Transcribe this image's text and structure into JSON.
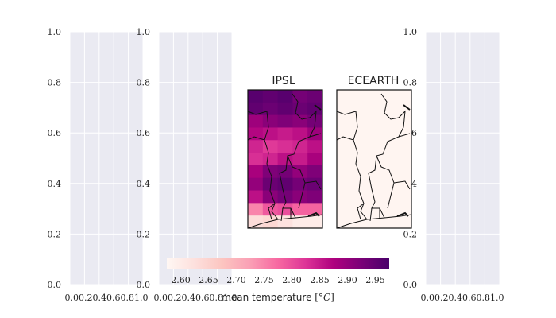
{
  "chart_data": {
    "type": "heatmap",
    "empty_axes": {
      "yticks": [
        "0.0",
        "0.2",
        "0.4",
        "0.6",
        "0.8",
        "1.0"
      ],
      "xticks": [
        "0.0",
        "0.2",
        "0.4",
        "0.6",
        "0.8",
        "1.0"
      ],
      "xtick_string": "0.00.20.40.60.81.0"
    },
    "maps": [
      {
        "title": "IPSL",
        "rows_north_to_south": [
          [
            2.96,
            2.95,
            2.96,
            2.93,
            2.94
          ],
          [
            2.95,
            2.94,
            2.95,
            2.94,
            2.95
          ],
          [
            2.89,
            2.91,
            2.92,
            2.91,
            2.93
          ],
          [
            2.87,
            2.86,
            2.85,
            2.86,
            2.89
          ],
          [
            2.84,
            2.82,
            2.83,
            2.84,
            2.86
          ],
          [
            2.83,
            2.84,
            2.86,
            2.85,
            2.88
          ],
          [
            2.88,
            2.92,
            2.93,
            2.9,
            2.92
          ],
          [
            2.9,
            2.94,
            2.95,
            2.93,
            2.94
          ],
          [
            2.86,
            2.91,
            2.93,
            2.91,
            2.92
          ],
          [
            2.75,
            2.79,
            2.8,
            2.78,
            2.78
          ],
          [
            2.63,
            2.64,
            2.62,
            2.6,
            2.6
          ]
        ]
      },
      {
        "title": "ECEARTH",
        "rows_north_to_south": "uniform",
        "uniform_value": 2.58
      }
    ],
    "colorbar": {
      "label": "mean temperature [°C]",
      "label_prefix": "mean temperature [",
      "label_unit": "°C",
      "label_suffix": "]",
      "range": [
        2.575,
        2.975
      ],
      "ticks": [
        2.6,
        2.65,
        2.7,
        2.75,
        2.8,
        2.85,
        2.9,
        2.95
      ],
      "tick_labels": [
        "2.60",
        "2.65",
        "2.70",
        "2.75",
        "2.80",
        "2.85",
        "2.90",
        "2.95"
      ],
      "colormap": "RdPu",
      "colors": [
        "#fff7f3",
        "#fde0dd",
        "#fcc5c0",
        "#fa9fb5",
        "#f768a1",
        "#dd3497",
        "#ae017e",
        "#7a0177",
        "#49006a"
      ]
    }
  }
}
